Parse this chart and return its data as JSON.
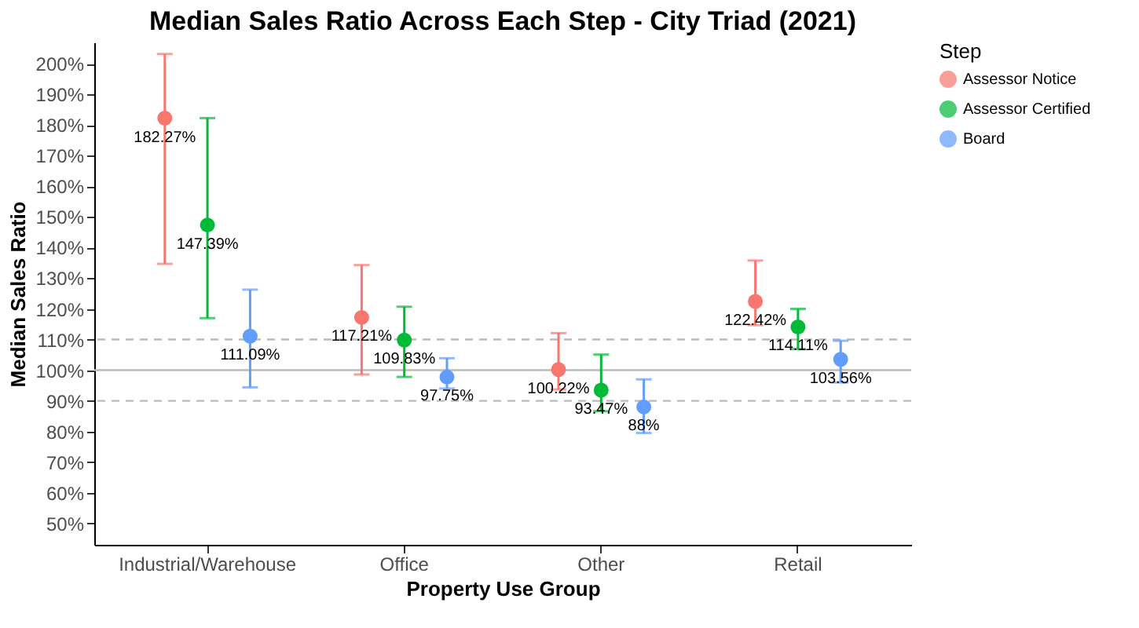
{
  "chart_data": {
    "type": "scatter",
    "title": "Median Sales Ratio Across Each Step - City Triad (2021)",
    "xlabel": "Property Use Group",
    "ylabel": "Median Sales Ratio",
    "legend_title": "Step",
    "legend": "right",
    "marker": "circle",
    "grid": false,
    "categories": [
      "Industrial/Warehouse",
      "Office",
      "Other",
      "Retail"
    ],
    "series": [
      {
        "name": "Assessor Notice",
        "color": "#f8766d",
        "values": [
          182.27,
          117.21,
          100.22,
          122.42
        ],
        "errors": [
          [
            134.7,
            203.2
          ],
          [
            98.6,
            134.3
          ],
          [
            93.7,
            112.1
          ],
          [
            114.7,
            135.8
          ]
        ],
        "value_labels": [
          "182.27%",
          "117.21%",
          "100.22%",
          "122.42%"
        ]
      },
      {
        "name": "Assessor Certified",
        "color": "#00ba38",
        "values": [
          147.39,
          109.83,
          93.47,
          114.11
        ],
        "errors": [
          [
            117.0,
            182.3
          ],
          [
            97.8,
            120.7
          ],
          [
            86.6,
            105.1
          ],
          [
            106.9,
            120.0
          ]
        ],
        "value_labels": [
          "147.39%",
          "109.83%",
          "93.47%",
          "114.11%"
        ]
      },
      {
        "name": "Board",
        "color": "#619cff",
        "values": [
          111.09,
          97.75,
          88,
          103.56
        ],
        "errors": [
          [
            94.4,
            126.3
          ],
          [
            94.0,
            103.9
          ],
          [
            79.5,
            97.0
          ],
          [
            96.0,
            109.6
          ]
        ],
        "value_labels": [
          "111.09%",
          "97.75%",
          "88%",
          "103.56%"
        ]
      }
    ],
    "ylim": [
      43,
      207
    ],
    "yticks": [
      {
        "value": 50,
        "label": "50%"
      },
      {
        "value": 60,
        "label": "60%"
      },
      {
        "value": 70,
        "label": "70%"
      },
      {
        "value": 80,
        "label": "80%"
      },
      {
        "value": 90,
        "label": "90%"
      },
      {
        "value": 100,
        "label": "100%"
      },
      {
        "value": 110,
        "label": "110%"
      },
      {
        "value": 120,
        "label": "120%"
      },
      {
        "value": 130,
        "label": "130%"
      },
      {
        "value": 140,
        "label": "140%"
      },
      {
        "value": 150,
        "label": "150%"
      },
      {
        "value": 160,
        "label": "160%"
      },
      {
        "value": 170,
        "label": "170%"
      },
      {
        "value": 180,
        "label": "180%"
      },
      {
        "value": 190,
        "label": "190%"
      },
      {
        "value": 200,
        "label": "200%"
      }
    ],
    "ref_lines": [
      {
        "axis": "y",
        "value": 110,
        "color": "#bbbbbb",
        "line_style": "dashed"
      },
      {
        "axis": "y",
        "value": 100,
        "color": "#bbbbbb",
        "line_style": "solid"
      },
      {
        "axis": "y",
        "value": 90,
        "color": "#bbbbbb",
        "line_style": "dashed"
      }
    ]
  }
}
